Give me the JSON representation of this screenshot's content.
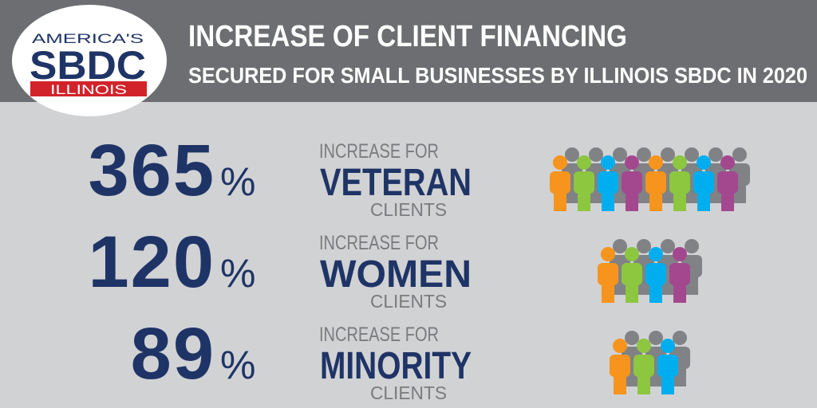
{
  "header": {
    "title": "INCREASE OF CLIENT FINANCING",
    "subtitle": "SECURED FOR SMALL BUSINESSES BY ILLINOIS SBDC IN 2020"
  },
  "logo": {
    "top": "AMERICA'S",
    "name": "SBDC",
    "state": "ILLINOIS"
  },
  "rows": [
    {
      "value": 365,
      "unit": "%",
      "line1": "INCREASE FOR",
      "group": "VETERAN",
      "line2": "CLIENTS"
    },
    {
      "value": 120,
      "unit": "%",
      "line1": "INCREASE FOR",
      "group": "WOMEN",
      "line2": "CLIENTS"
    },
    {
      "value": 89,
      "unit": "%",
      "line1": "INCREASE FOR",
      "group": "MINORITY",
      "line2": "CLIENTS"
    }
  ]
}
